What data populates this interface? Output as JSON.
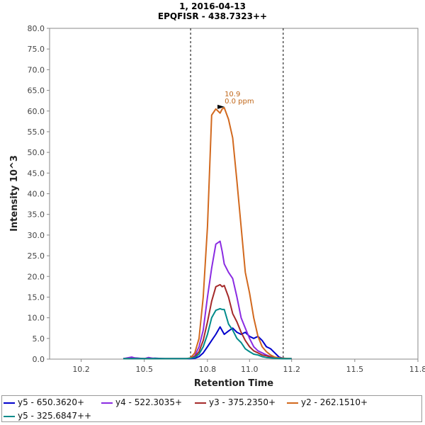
{
  "chart_data": {
    "type": "line",
    "title": "1, 2016-04-13",
    "subtitle": "EPQFISR - 438.7323++",
    "xlabel": "Retention Time",
    "ylabel": "Intensity 10^3",
    "xlim": [
      10.05,
      11.8
    ],
    "ylim": [
      0,
      80
    ],
    "xticks": [
      "10.2",
      "10.5",
      "10.8",
      "11.0",
      "11.2",
      "11.5",
      "11.8"
    ],
    "xtick_values": [
      10.2,
      10.5,
      10.8,
      11.0,
      11.2,
      11.5,
      11.8
    ],
    "yticks": [
      "0.0",
      "5.0",
      "10.0",
      "15.0",
      "20.0",
      "25.0",
      "30.0",
      "35.0",
      "40.0",
      "45.0",
      "50.0",
      "55.0",
      "60.0",
      "65.0",
      "70.0",
      "75.0",
      "80.0"
    ],
    "ytick_values": [
      0,
      5,
      10,
      15,
      20,
      25,
      30,
      35,
      40,
      45,
      50,
      55,
      60,
      65,
      70,
      75,
      80
    ],
    "boundaries": [
      10.72,
      11.16
    ],
    "annotation": {
      "line1": "10.9",
      "line2": "0.0 ppm",
      "x": 10.868,
      "y": 61.0,
      "color": "#c0671a"
    },
    "legend_position": "bottom",
    "series": [
      {
        "name": "y5 - 650.3620+",
        "color": "#0000cc",
        "x": [
          10.4,
          10.45,
          10.5,
          10.55,
          10.6,
          10.65,
          10.7,
          10.72,
          10.74,
          10.76,
          10.78,
          10.8,
          10.82,
          10.84,
          10.86,
          10.88,
          10.9,
          10.92,
          10.94,
          10.96,
          10.98,
          11.0,
          11.02,
          11.04,
          11.06,
          11.08,
          11.1,
          11.12,
          11.14,
          11.16,
          11.18,
          11.2
        ],
        "y": [
          0.1,
          0.3,
          0.1,
          0.2,
          0.1,
          0.1,
          0.1,
          0.1,
          0.2,
          0.6,
          1.5,
          3.0,
          4.5,
          6.0,
          7.8,
          6.0,
          6.8,
          7.5,
          6.5,
          6.0,
          6.5,
          5.5,
          5.0,
          5.5,
          4.5,
          3.0,
          2.5,
          1.5,
          0.5,
          0.2,
          0.1,
          0.1
        ]
      },
      {
        "name": "y4 - 522.3035+",
        "color": "#8a2be2",
        "x": [
          10.4,
          10.44,
          10.46,
          10.5,
          10.52,
          10.55,
          10.6,
          10.65,
          10.7,
          10.72,
          10.74,
          10.76,
          10.78,
          10.8,
          10.82,
          10.84,
          10.86,
          10.87,
          10.88,
          10.9,
          10.92,
          10.94,
          10.96,
          10.98,
          11.0,
          11.02,
          11.04,
          11.06,
          11.08,
          11.1,
          11.12,
          11.14,
          11.16,
          11.18,
          11.2
        ],
        "y": [
          0.1,
          0.5,
          0.2,
          0.1,
          0.4,
          0.1,
          0.1,
          0.1,
          0.1,
          0.2,
          0.8,
          3.0,
          7.0,
          15.0,
          22.0,
          27.8,
          28.5,
          26.0,
          23.0,
          21.0,
          19.5,
          15.0,
          10.0,
          7.5,
          5.0,
          3.0,
          2.0,
          1.5,
          1.0,
          0.6,
          0.4,
          0.3,
          0.2,
          0.1,
          0.1
        ]
      },
      {
        "name": "y3 - 375.2350+",
        "color": "#a52a2a",
        "x": [
          10.4,
          10.5,
          10.6,
          10.7,
          10.72,
          10.74,
          10.76,
          10.78,
          10.8,
          10.82,
          10.84,
          10.86,
          10.87,
          10.88,
          10.9,
          10.92,
          10.94,
          10.96,
          10.98,
          11.0,
          11.02,
          11.04,
          11.06,
          11.08,
          11.1,
          11.12,
          11.14,
          11.16,
          11.2
        ],
        "y": [
          0.1,
          0.1,
          0.1,
          0.1,
          0.2,
          0.6,
          1.8,
          4.5,
          9.0,
          14.0,
          17.5,
          18.0,
          17.5,
          17.8,
          15.0,
          11.0,
          9.0,
          6.5,
          4.5,
          3.0,
          2.0,
          1.5,
          1.0,
          0.8,
          0.5,
          0.3,
          0.2,
          0.1,
          0.1
        ]
      },
      {
        "name": "y2 - 262.1510+",
        "color": "#d2691e",
        "x": [
          10.4,
          10.5,
          10.6,
          10.7,
          10.72,
          10.74,
          10.76,
          10.78,
          10.8,
          10.82,
          10.84,
          10.86,
          10.87,
          10.88,
          10.9,
          10.92,
          10.94,
          10.96,
          10.98,
          11.0,
          11.02,
          11.04,
          11.06,
          11.08,
          11.1,
          11.12,
          11.14,
          11.16,
          11.2
        ],
        "y": [
          0.1,
          0.1,
          0.1,
          0.1,
          0.3,
          1.5,
          5.0,
          15.0,
          32.0,
          59.0,
          60.5,
          59.5,
          60.5,
          60.8,
          58.0,
          53.5,
          43.0,
          32.0,
          21.0,
          16.0,
          10.0,
          5.5,
          3.0,
          1.8,
          1.0,
          0.5,
          0.3,
          0.2,
          0.1
        ]
      },
      {
        "name": "y5 - 325.6847++",
        "color": "#008b8b",
        "x": [
          10.4,
          10.5,
          10.6,
          10.7,
          10.72,
          10.74,
          10.76,
          10.78,
          10.8,
          10.82,
          10.84,
          10.86,
          10.87,
          10.88,
          10.9,
          10.92,
          10.94,
          10.96,
          10.98,
          11.0,
          11.02,
          11.04,
          11.06,
          11.08,
          11.1,
          11.12,
          11.16,
          11.2
        ],
        "y": [
          0.1,
          0.1,
          0.1,
          0.1,
          0.2,
          0.4,
          1.2,
          3.0,
          6.0,
          10.0,
          11.8,
          12.2,
          12.0,
          12.0,
          8.5,
          7.0,
          5.0,
          4.0,
          2.5,
          1.8,
          1.2,
          1.0,
          0.6,
          0.4,
          0.3,
          0.2,
          0.1,
          0.1
        ]
      }
    ]
  }
}
